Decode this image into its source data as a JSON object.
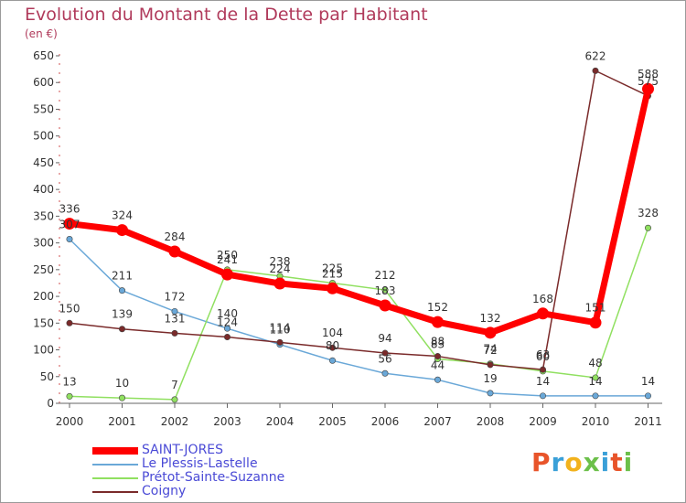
{
  "header": {
    "title": "Evolution du Montant de la Dette par Habitant",
    "subtitle": "(en €)"
  },
  "logo": {
    "letters": [
      "P",
      "r",
      "o",
      "x",
      "i",
      "t",
      "i"
    ],
    "colors": [
      "#e8542a",
      "#3aa0d8",
      "#f2b21c",
      "#6cc04a",
      "#3aa0d8",
      "#e8542a",
      "#6cc04a"
    ]
  },
  "chart_data": {
    "type": "line",
    "title": "Evolution du Montant de la Dette par Habitant",
    "subtitle": "(en €)",
    "x": [
      2000,
      2001,
      2002,
      2003,
      2004,
      2005,
      2006,
      2007,
      2008,
      2009,
      2010,
      2011
    ],
    "ylim": [
      0,
      650
    ],
    "yticks": [
      0,
      50,
      100,
      150,
      200,
      250,
      300,
      350,
      400,
      450,
      500,
      550,
      600,
      650
    ],
    "grid": false,
    "legend": "bottom-left",
    "series": [
      {
        "name": "SAINT-JORES",
        "color": "#ff0000",
        "width": 7,
        "values": [
          336,
          324,
          284,
          241,
          224,
          215,
          183,
          152,
          132,
          168,
          151,
          588
        ]
      },
      {
        "name": "Le Plessis-Lastelle",
        "color": "#6aa8d8",
        "width": 1.5,
        "values": [
          307,
          211,
          172,
          140,
          110,
          80,
          56,
          44,
          19,
          14,
          14,
          14
        ]
      },
      {
        "name": "Prétot-Sainte-Suzanne",
        "color": "#90e060",
        "width": 1.5,
        "values": [
          13,
          10,
          7,
          250,
          238,
          225,
          212,
          83,
          74,
          60,
          48,
          328
        ]
      },
      {
        "name": "Coigny",
        "color": "#7a2a2a",
        "width": 1.5,
        "values": [
          150,
          139,
          131,
          124,
          114,
          104,
          94,
          88,
          72,
          63,
          622,
          575
        ]
      }
    ]
  }
}
